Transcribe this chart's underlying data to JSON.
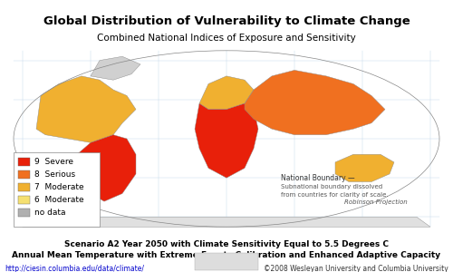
{
  "title": "Global Distribution of Vulnerability to Climate Change",
  "subtitle": "Combined National Indices of Exposure and Sensitivity",
  "footer_line1": "Scenario A2 Year 2050 with Climate Sensitivity Equal to 5.5 Degrees C",
  "footer_line2": "Annual Mean Temperature with Extreme Events Calibration and Enhanced Adaptive Capacity",
  "footer_left": "http://ciesin.columbia.edu/data/climate/",
  "footer_right": "©2008 Wesleyan University and Columbia University",
  "legend_items": [
    {
      "label": "9  Severe",
      "color": "#e8200a"
    },
    {
      "label": "8  Serious",
      "color": "#f07020"
    },
    {
      "label": "7  Moderate",
      "color": "#f0b030"
    },
    {
      "label": "6  Moderate",
      "color": "#f5e070"
    },
    {
      "label": "no data",
      "color": "#b0b0b0"
    }
  ],
  "bg_color": "#ffffff",
  "ocean_color": "#a8d8e8",
  "map_image_path": null,
  "title_fontsize": 9.5,
  "subtitle_fontsize": 7.5,
  "footer_fontsize": 6.5,
  "legend_fontsize": 6.5,
  "map_note1": "National Boundary —",
  "map_note2": "Subnational boundary dissolved",
  "map_note3": "from countries for clarity of scale.",
  "map_note4": "Robinson Projection"
}
